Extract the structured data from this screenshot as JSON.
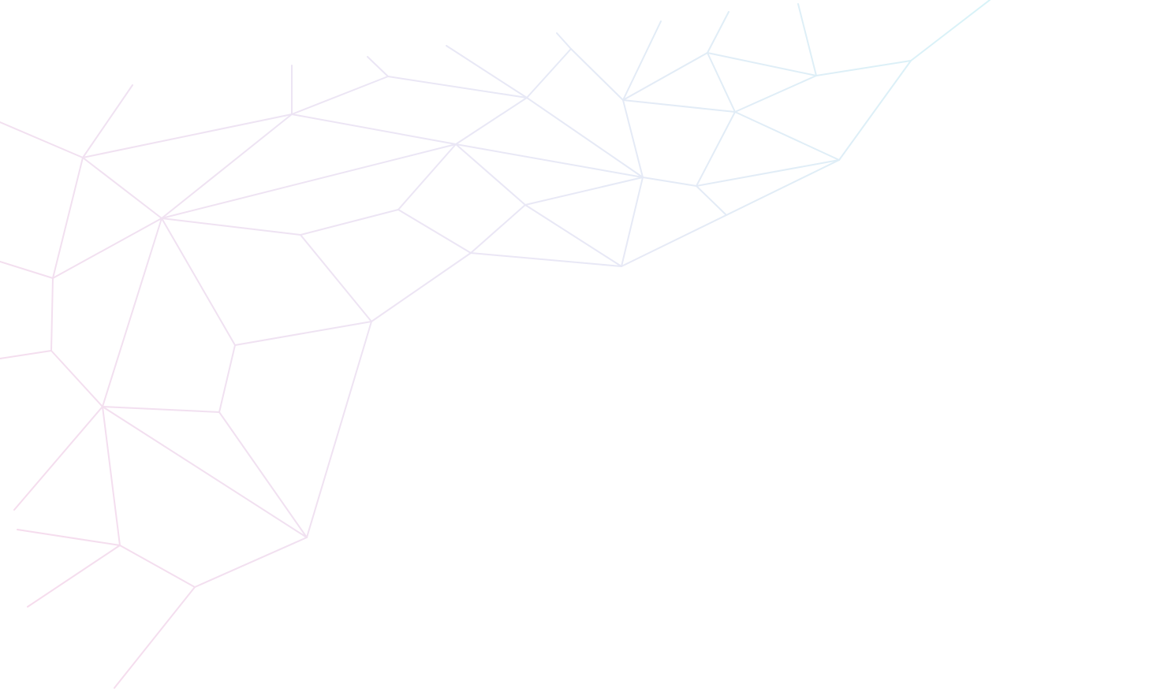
{
  "background": {
    "name": "low-poly-network-pattern",
    "colors": {
      "page": "#ffffff",
      "gradient_start": "#f6dced",
      "gradient_mid": "#ebe6f5",
      "gradient_end": "#d8f3f8"
    }
  }
}
